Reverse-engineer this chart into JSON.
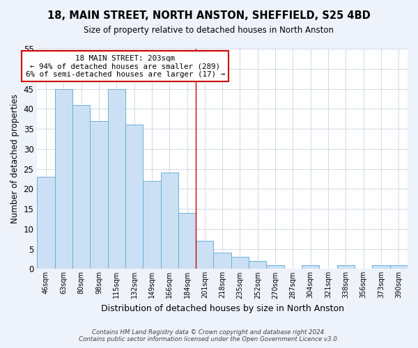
{
  "title": "18, MAIN STREET, NORTH ANSTON, SHEFFIELD, S25 4BD",
  "subtitle": "Size of property relative to detached houses in North Anston",
  "xlabel": "Distribution of detached houses by size in North Anston",
  "ylabel": "Number of detached properties",
  "bar_labels": [
    "46sqm",
    "63sqm",
    "80sqm",
    "98sqm",
    "115sqm",
    "132sqm",
    "149sqm",
    "166sqm",
    "184sqm",
    "201sqm",
    "218sqm",
    "235sqm",
    "252sqm",
    "270sqm",
    "287sqm",
    "304sqm",
    "321sqm",
    "338sqm",
    "356sqm",
    "373sqm",
    "390sqm"
  ],
  "bar_values": [
    23,
    45,
    41,
    37,
    45,
    36,
    22,
    24,
    14,
    7,
    4,
    3,
    2,
    1,
    0,
    1,
    0,
    1,
    0,
    1,
    1
  ],
  "bar_color": "#cce0f5",
  "bar_edgecolor": "#6aaed6",
  "highlight_index": 9,
  "highlight_line_color": "#cc0000",
  "annotation_title": "18 MAIN STREET: 203sqm",
  "annotation_line1": "← 94% of detached houses are smaller (289)",
  "annotation_line2": "6% of semi-detached houses are larger (17) →",
  "annotation_box_edgecolor": "#cc0000",
  "annotation_box_facecolor": "#ffffff",
  "ylim": [
    0,
    55
  ],
  "yticks": [
    0,
    5,
    10,
    15,
    20,
    25,
    30,
    35,
    40,
    45,
    50,
    55
  ],
  "footer_line1": "Contains HM Land Registry data © Crown copyright and database right 2024.",
  "footer_line2": "Contains public sector information licensed under the Open Government Licence v3.0.",
  "bg_color": "#eef2fa",
  "plot_bg_color": "#ffffff",
  "grid_color": "#d0d8e8"
}
